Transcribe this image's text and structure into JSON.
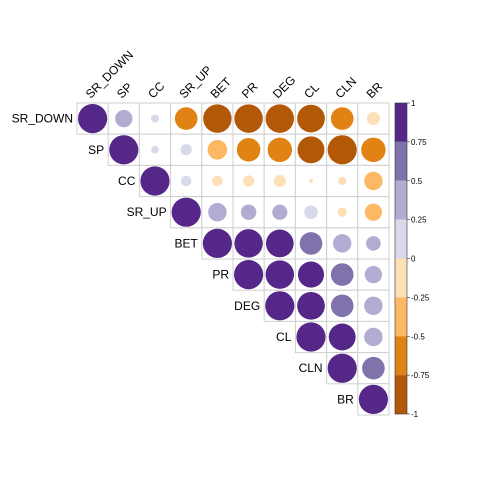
{
  "chart_data": {
    "type": "correlation-matrix",
    "variables": [
      "SR_DOWN",
      "SP",
      "CC",
      "SR_UP",
      "BET",
      "PR",
      "DEG",
      "CL",
      "CLN",
      "BR"
    ],
    "shape": "upper-triangle",
    "marker": "circle",
    "matrix": [
      [
        1.0,
        0.35,
        0.08,
        -0.6,
        -0.95,
        -0.95,
        -0.95,
        -0.9,
        -0.6,
        -0.2
      ],
      [
        null,
        1.0,
        0.07,
        0.15,
        -0.45,
        -0.65,
        -0.7,
        -0.85,
        -1.0,
        -0.7
      ],
      [
        null,
        null,
        1.0,
        0.13,
        -0.13,
        -0.15,
        -0.17,
        -0.02,
        -0.08,
        -0.4
      ],
      [
        null,
        null,
        null,
        1.0,
        0.4,
        0.28,
        0.27,
        0.22,
        -0.1,
        -0.35
      ],
      [
        null,
        null,
        null,
        null,
        1.0,
        0.95,
        0.9,
        0.6,
        0.4,
        0.25
      ],
      [
        null,
        null,
        null,
        null,
        null,
        1.0,
        0.95,
        0.8,
        0.6,
        0.35
      ],
      [
        null,
        null,
        null,
        null,
        null,
        null,
        1.0,
        0.9,
        0.6,
        0.4
      ],
      [
        null,
        null,
        null,
        null,
        null,
        null,
        null,
        1.0,
        0.85,
        0.4
      ],
      [
        null,
        null,
        null,
        null,
        null,
        null,
        null,
        null,
        1.0,
        0.6
      ],
      [
        null,
        null,
        null,
        null,
        null,
        null,
        null,
        null,
        null,
        1.0
      ]
    ],
    "color_scale": {
      "range": [
        -1,
        1
      ],
      "ticks": [
        "1",
        "0.75",
        "0.5",
        "0.25",
        "0",
        "-0.25",
        "-0.5",
        "-0.75",
        "-1"
      ],
      "bands": [
        {
          "from": 0.75,
          "to": 1.0,
          "color": "#542788"
        },
        {
          "from": 0.5,
          "to": 0.75,
          "color": "#8073ac"
        },
        {
          "from": 0.25,
          "to": 0.5,
          "color": "#b2abd2"
        },
        {
          "from": 0.0,
          "to": 0.25,
          "color": "#d8daeb"
        },
        {
          "from": -0.25,
          "to": 0.0,
          "color": "#fee0b6"
        },
        {
          "from": -0.5,
          "to": -0.25,
          "color": "#fdb863"
        },
        {
          "from": -0.75,
          "to": -0.5,
          "color": "#e08214"
        },
        {
          "from": -1.0,
          "to": -0.75,
          "color": "#b35806"
        }
      ]
    },
    "legend_placement": "right",
    "grid": true
  }
}
